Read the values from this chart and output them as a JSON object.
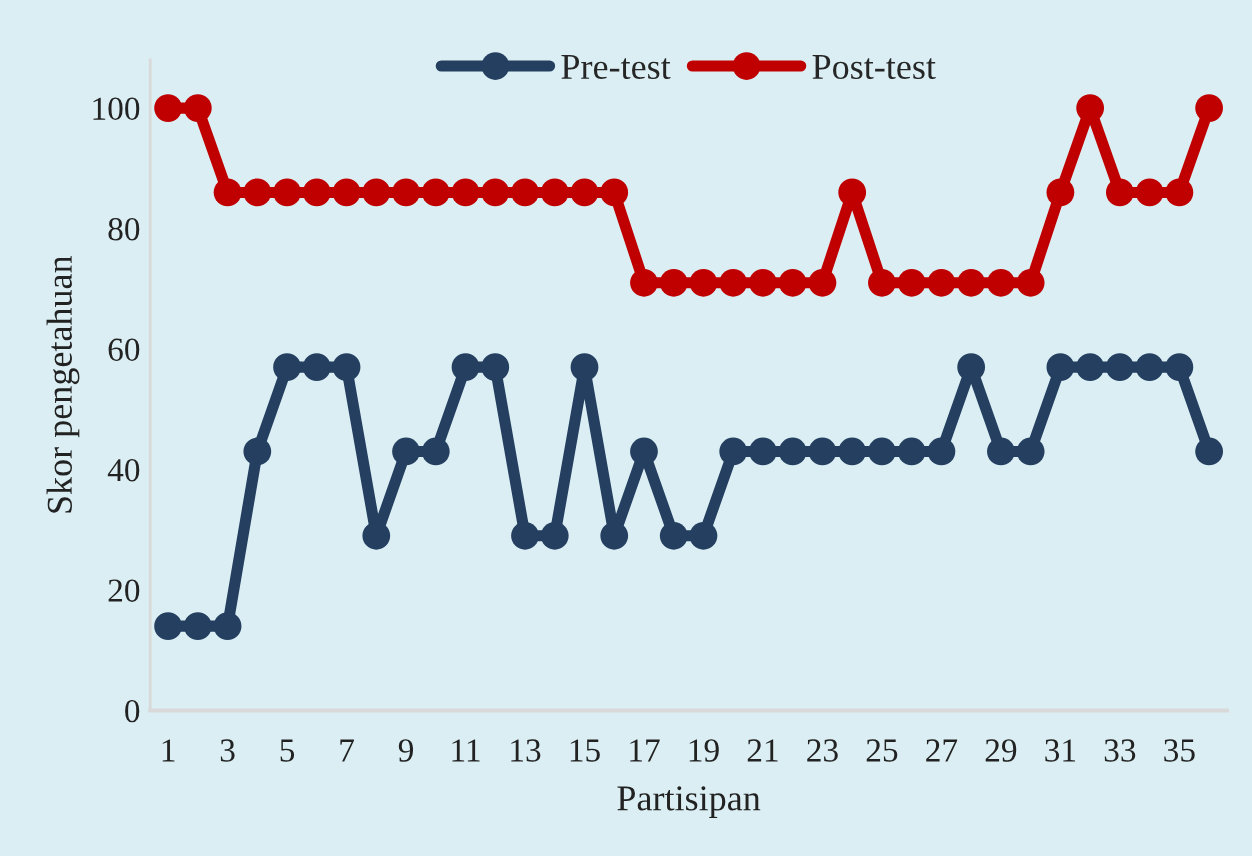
{
  "chart_data": {
    "type": "line",
    "xlabel": "Partisipan",
    "ylabel": "Skor pengetahuan",
    "categories": [
      "1",
      null,
      "3",
      null,
      "5",
      null,
      "7",
      null,
      "9",
      null,
      "11",
      null,
      "13",
      null,
      "15",
      null,
      "17",
      null,
      "19",
      null,
      "21",
      null,
      "23",
      null,
      "25",
      null,
      "27",
      null,
      "29",
      null,
      "31",
      null,
      "33",
      null,
      "35",
      null
    ],
    "series": [
      {
        "name": "Pre-test",
        "color": "#243f60",
        "values": [
          14,
          14,
          14,
          43,
          57,
          57,
          57,
          29,
          43,
          43,
          57,
          57,
          29,
          29,
          57,
          29,
          43,
          29,
          29,
          43,
          43,
          43,
          43,
          43,
          43,
          43,
          43,
          57,
          43,
          43,
          57,
          57,
          57,
          57,
          57,
          43
        ]
      },
      {
        "name": "Post-test",
        "color": "#c00000",
        "values": [
          100,
          100,
          86,
          86,
          86,
          86,
          86,
          86,
          86,
          86,
          86,
          86,
          86,
          86,
          86,
          86,
          71,
          71,
          71,
          71,
          71,
          71,
          71,
          86,
          71,
          71,
          71,
          71,
          71,
          71,
          86,
          100,
          86,
          86,
          86,
          100
        ]
      }
    ],
    "ylim": [
      0,
      108
    ],
    "yticks": [
      0,
      20,
      40,
      60,
      80,
      100
    ],
    "marker": "circle",
    "line_style": "solid",
    "grid": false,
    "legend": "top"
  }
}
